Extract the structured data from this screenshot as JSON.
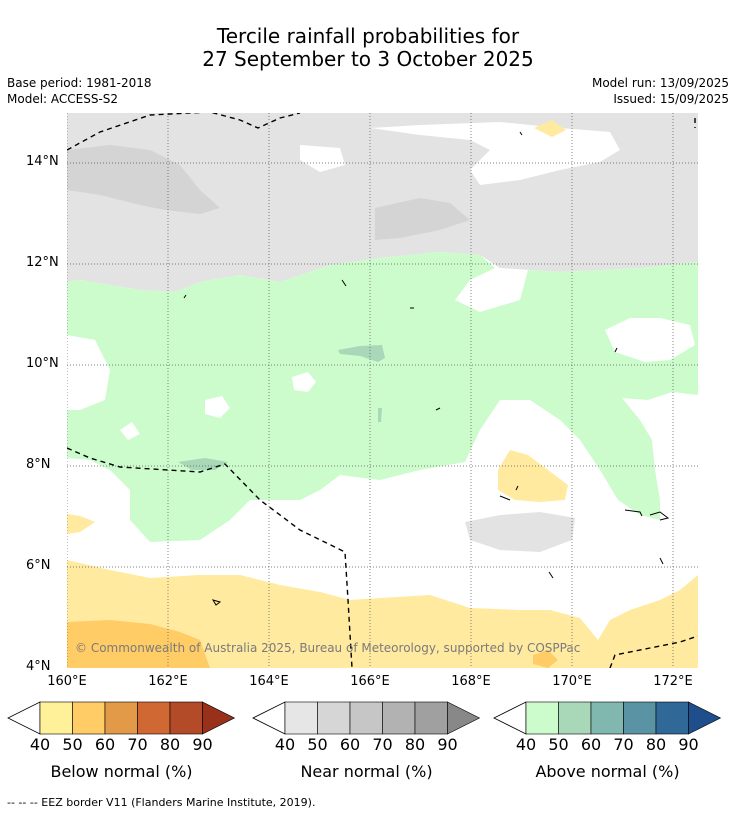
{
  "title": {
    "line1": "Tercile rainfall probabilities for",
    "line2": "27 September to 3 October 2025"
  },
  "meta": {
    "base_period": "Base period: 1981-2018",
    "model": "Model: ACCESS-S2",
    "model_run": "Model run: 13/09/2025",
    "issued": "Issued: 15/09/2025"
  },
  "map": {
    "lat_ticks": [
      "14°N",
      "12°N",
      "10°N",
      "8°N",
      "6°N",
      "4°N"
    ],
    "lon_ticks": [
      "160°E",
      "162°E",
      "164°E",
      "166°E",
      "168°E",
      "170°E",
      "172°E"
    ],
    "copyright": "© Commonwealth of Australia 2025, Bureau of Meteorology, supported by COSPPac",
    "colors": {
      "near_light": "#e3e3e3",
      "near_mid": "#d4d4d4",
      "above_light": "#ccfccc",
      "above_mid": "#a8d8b8",
      "below_light": "#ffeaa0",
      "below_mid": "#ffcc66",
      "below_dark": "#e6993c"
    }
  },
  "colorbars": [
    {
      "label": "Below normal (%)",
      "ticks": [
        "40",
        "50",
        "60",
        "70",
        "80",
        "90"
      ],
      "colors": [
        "#fff09a",
        "#ffcc66",
        "#e39a48",
        "#d06834",
        "#b34a28",
        "#98301a"
      ]
    },
    {
      "label": "Near normal (%)",
      "ticks": [
        "40",
        "50",
        "60",
        "70",
        "80",
        "90"
      ],
      "colors": [
        "#e6e6e6",
        "#d6d6d6",
        "#c6c6c6",
        "#b2b2b2",
        "#a0a0a0",
        "#888888"
      ]
    },
    {
      "label": "Above normal (%)",
      "ticks": [
        "40",
        "50",
        "60",
        "70",
        "80",
        "90"
      ],
      "colors": [
        "#ccfccc",
        "#a8d8b8",
        "#80b8b0",
        "#5a94a4",
        "#306898",
        "#1e4e8c"
      ]
    }
  ],
  "footer": "--  --  -- EEZ border V11 (Flanders Marine Institute, 2019)."
}
